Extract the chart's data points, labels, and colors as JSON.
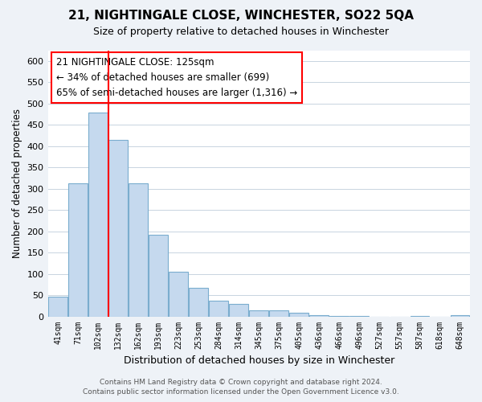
{
  "title": "21, NIGHTINGALE CLOSE, WINCHESTER, SO22 5QA",
  "subtitle": "Size of property relative to detached houses in Winchester",
  "xlabel": "Distribution of detached houses by size in Winchester",
  "ylabel": "Number of detached properties",
  "bar_values": [
    47,
    312,
    479,
    415,
    313,
    192,
    105,
    67,
    36,
    30,
    14,
    15,
    8,
    2,
    1,
    1,
    0,
    0,
    1,
    0,
    3
  ],
  "bar_labels": [
    "41sqm",
    "71sqm",
    "102sqm",
    "132sqm",
    "162sqm",
    "193sqm",
    "223sqm",
    "253sqm",
    "284sqm",
    "314sqm",
    "345sqm",
    "375sqm",
    "405sqm",
    "436sqm",
    "466sqm",
    "496sqm",
    "527sqm",
    "557sqm",
    "587sqm",
    "618sqm",
    "648sqm"
  ],
  "bar_color": "#c5d9ee",
  "bar_edge_color": "#7aadce",
  "redline_index": 3,
  "ylim": [
    0,
    625
  ],
  "yticks": [
    0,
    50,
    100,
    150,
    200,
    250,
    300,
    350,
    400,
    450,
    500,
    550,
    600
  ],
  "annotation_title": "21 NIGHTINGALE CLOSE: 125sqm",
  "annotation_line1": "← 34% of detached houses are smaller (699)",
  "annotation_line2": "65% of semi-detached houses are larger (1,316) →",
  "footer1": "Contains HM Land Registry data © Crown copyright and database right 2024.",
  "footer2": "Contains public sector information licensed under the Open Government Licence v3.0.",
  "bg_color": "#eef2f7",
  "plot_bg_color": "#ffffff",
  "grid_color": "#c8d4e0"
}
